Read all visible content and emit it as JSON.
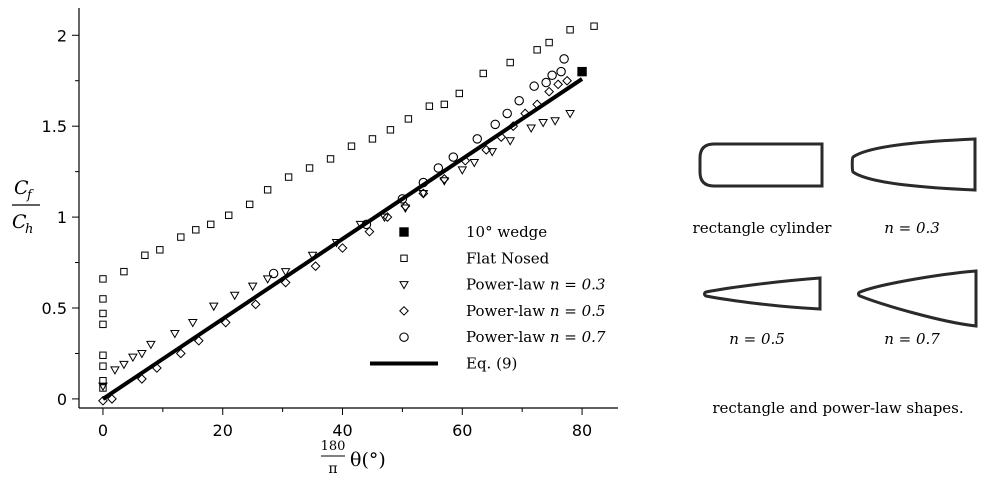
{
  "chart_data": {
    "type": "scatter",
    "xlim": [
      -4,
      86
    ],
    "ylim": [
      -0.05,
      2.15
    ],
    "x_ticks": [
      0,
      20,
      40,
      60,
      80
    ],
    "x_tick_labels": [
      "0",
      "20",
      "40",
      "60",
      "80"
    ],
    "y_ticks": [
      0,
      0.5,
      1,
      1.5,
      2
    ],
    "y_tick_labels": [
      "0",
      "0.5",
      "1",
      "1.5",
      "2"
    ],
    "xlabel": {
      "frac_num": "180",
      "frac_den": "π",
      "rest": "θ(°)"
    },
    "ylabel": {
      "num_sym": "C",
      "num_sub": "f",
      "den_sym": "C",
      "den_sub": "h"
    },
    "grid": false,
    "legend_position": "lower-right",
    "series": [
      {
        "name_text": "10° wedge",
        "marker": "square-filled",
        "points": [
          [
            80,
            1.8
          ]
        ]
      },
      {
        "name_text": "Flat Nosed",
        "marker": "square-open",
        "points": [
          [
            0,
            0.66
          ],
          [
            0,
            0.55
          ],
          [
            0,
            0.47
          ],
          [
            0,
            0.41
          ],
          [
            0,
            0.24
          ],
          [
            0,
            0.18
          ],
          [
            0,
            0.1
          ],
          [
            0,
            0.06
          ],
          [
            3.5,
            0.7
          ],
          [
            7,
            0.79
          ],
          [
            9.5,
            0.82
          ],
          [
            13,
            0.89
          ],
          [
            15.5,
            0.93
          ],
          [
            18,
            0.96
          ],
          [
            21,
            1.01
          ],
          [
            24.5,
            1.07
          ],
          [
            27.5,
            1.15
          ],
          [
            31,
            1.22
          ],
          [
            34.5,
            1.27
          ],
          [
            38,
            1.32
          ],
          [
            41.5,
            1.39
          ],
          [
            45,
            1.43
          ],
          [
            48,
            1.48
          ],
          [
            51,
            1.54
          ],
          [
            54.5,
            1.61
          ],
          [
            57,
            1.62
          ],
          [
            59.5,
            1.68
          ],
          [
            63.5,
            1.79
          ],
          [
            68,
            1.85
          ],
          [
            72.5,
            1.92
          ],
          [
            74.5,
            1.96
          ],
          [
            78,
            2.03
          ],
          [
            82,
            2.05
          ]
        ]
      },
      {
        "name_text": "Power-law",
        "name_math": "n = 0.3",
        "marker": "triangle-down-open",
        "points": [
          [
            0,
            0.07
          ],
          [
            2,
            0.16
          ],
          [
            3.5,
            0.19
          ],
          [
            5,
            0.23
          ],
          [
            6.5,
            0.25
          ],
          [
            8,
            0.3
          ],
          [
            12,
            0.36
          ],
          [
            15,
            0.42
          ],
          [
            18.5,
            0.51
          ],
          [
            22,
            0.57
          ],
          [
            25,
            0.62
          ],
          [
            27.5,
            0.66
          ],
          [
            30.5,
            0.7
          ],
          [
            35,
            0.79
          ],
          [
            39,
            0.86
          ],
          [
            43,
            0.96
          ],
          [
            47,
            1.0
          ],
          [
            50.5,
            1.05
          ],
          [
            53.5,
            1.13
          ],
          [
            57,
            1.2
          ],
          [
            60,
            1.26
          ],
          [
            62,
            1.3
          ],
          [
            65,
            1.36
          ],
          [
            68,
            1.42
          ],
          [
            71.5,
            1.49
          ],
          [
            73.5,
            1.52
          ],
          [
            75.5,
            1.53
          ],
          [
            78,
            1.57
          ]
        ]
      },
      {
        "name_text": "Power-law",
        "name_math": "n = 0.5",
        "marker": "diamond-open",
        "points": [
          [
            0,
            -0.01
          ],
          [
            1.5,
            0.0
          ],
          [
            6.5,
            0.11
          ],
          [
            9,
            0.17
          ],
          [
            13,
            0.25
          ],
          [
            16,
            0.32
          ],
          [
            20.5,
            0.42
          ],
          [
            25.5,
            0.52
          ],
          [
            30.5,
            0.64
          ],
          [
            35.5,
            0.73
          ],
          [
            40,
            0.83
          ],
          [
            44.5,
            0.92
          ],
          [
            47.5,
            1.0
          ],
          [
            50.5,
            1.06
          ],
          [
            53.5,
            1.13
          ],
          [
            57,
            1.21
          ],
          [
            60.5,
            1.31
          ],
          [
            64,
            1.37
          ],
          [
            66.5,
            1.44
          ],
          [
            68.5,
            1.5
          ],
          [
            70.5,
            1.57
          ],
          [
            72.5,
            1.62
          ],
          [
            74.5,
            1.69
          ],
          [
            76,
            1.73
          ],
          [
            77.5,
            1.75
          ]
        ]
      },
      {
        "name_text": "Power-law",
        "name_math": "n = 0.7",
        "marker": "circle-open",
        "points": [
          [
            28.5,
            0.69
          ],
          [
            44,
            0.96
          ],
          [
            50,
            1.1
          ],
          [
            53.5,
            1.19
          ],
          [
            56,
            1.27
          ],
          [
            58.5,
            1.33
          ],
          [
            62.5,
            1.43
          ],
          [
            65.5,
            1.51
          ],
          [
            67.5,
            1.57
          ],
          [
            69.5,
            1.64
          ],
          [
            72,
            1.72
          ],
          [
            74,
            1.74
          ],
          [
            75,
            1.78
          ],
          [
            76.5,
            1.8
          ],
          [
            77,
            1.87
          ]
        ]
      }
    ],
    "fit_line": {
      "name_text": "Eq. (9)",
      "points": [
        [
          0,
          0.0
        ],
        [
          80,
          1.76
        ]
      ]
    }
  },
  "shapes": {
    "labels": [
      "rectangle cylinder",
      "n = 0.3",
      "n = 0.5",
      "n = 0.7"
    ],
    "caption": "rectangle and power-law shapes."
  }
}
